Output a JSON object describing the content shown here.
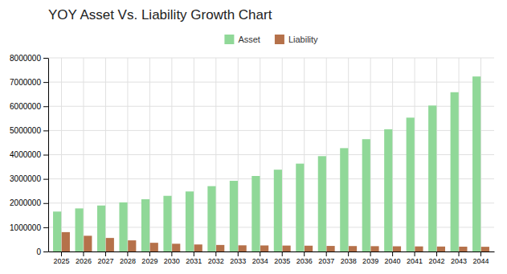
{
  "chart_data": {
    "type": "bar",
    "title": "YOY Asset Vs. Liability Growth Chart",
    "categories": [
      "2025",
      "2026",
      "2027",
      "2028",
      "2029",
      "2030",
      "2031",
      "2032",
      "2033",
      "2034",
      "2035",
      "2036",
      "2037",
      "2038",
      "2039",
      "2040",
      "2041",
      "2042",
      "2043",
      "2044"
    ],
    "series": [
      {
        "name": "Asset",
        "color": "#90d898",
        "values": [
          1650000,
          1780000,
          1900000,
          2030000,
          2160000,
          2300000,
          2480000,
          2700000,
          2920000,
          3120000,
          3380000,
          3630000,
          3940000,
          4270000,
          4640000,
          5050000,
          5530000,
          6030000,
          6580000,
          7230000
        ]
      },
      {
        "name": "Liability",
        "color": "#b5714a",
        "values": [
          800000,
          650000,
          560000,
          460000,
          360000,
          320000,
          290000,
          270000,
          255000,
          250000,
          245000,
          240000,
          230000,
          225000,
          220000,
          215000,
          210000,
          205000,
          200000,
          195000
        ]
      }
    ],
    "ylim": [
      0,
      8000000
    ],
    "yticks": [
      0,
      1000000,
      2000000,
      3000000,
      4000000,
      5000000,
      6000000,
      7000000,
      8000000
    ],
    "grid": true,
    "legend": "top"
  }
}
